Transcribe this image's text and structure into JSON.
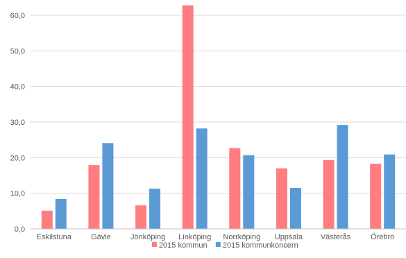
{
  "chart_data": {
    "type": "bar",
    "title": "",
    "xlabel": "",
    "ylabel": "",
    "ylim": [
      0,
      60
    ],
    "yticks": [
      "0,0",
      "10,0",
      "20,0",
      "30,0",
      "40,0",
      "50,0",
      "60,0"
    ],
    "grid": true,
    "legend_position": "bottom",
    "categories": [
      "Eskilstuna",
      "Gävle",
      "Jönköping",
      "Linköping",
      "Norrköping",
      "Uppsala",
      "Västerås",
      "Örebro"
    ],
    "series": [
      {
        "name": "2015 kommun",
        "color": "#ff7c80",
        "values": [
          5.1,
          17.9,
          6.6,
          62.8,
          22.7,
          17.0,
          19.3,
          18.3
        ]
      },
      {
        "name": "2015 kommunkoncern",
        "color": "#5b9bd5",
        "values": [
          8.4,
          24.1,
          11.3,
          28.2,
          20.7,
          11.5,
          29.2,
          20.9
        ]
      }
    ]
  }
}
